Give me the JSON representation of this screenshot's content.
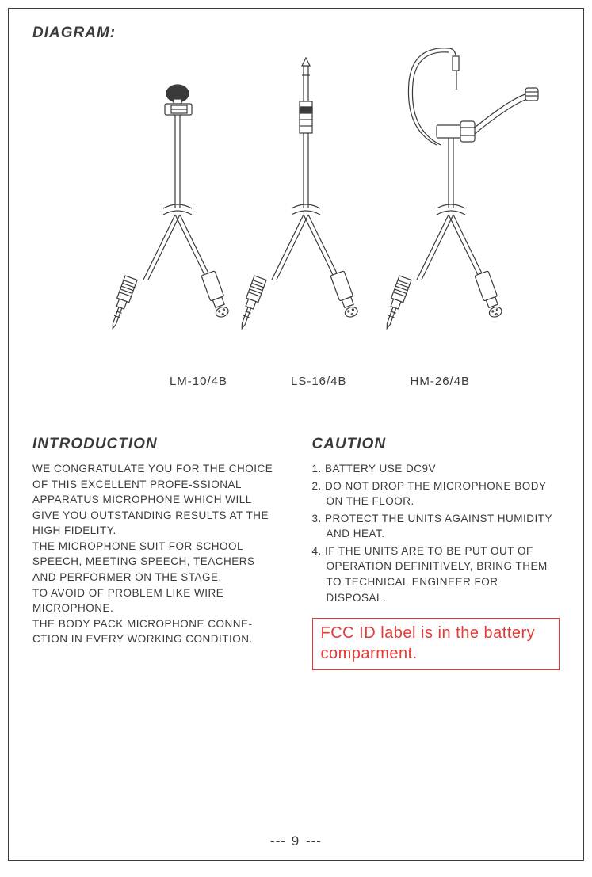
{
  "diagram": {
    "title": "DIAGRAM:",
    "labels": [
      "LM-10/4B",
      "LS-16/4B",
      "HM-26/4B"
    ],
    "stroke": "#3a3a3a",
    "stroke_width": 1.2
  },
  "introduction": {
    "title": "INTRODUCTION",
    "body": "WE CONGRATULATE YOU FOR THE CHOICE OF THIS EXCELLENT PROFE-SSIONAL APPARATUS MICROPHONE WHICH WILL GIVE YOU OUTSTANDING RESULTS AT THE HIGH FIDELITY.\nTHE MICROPHONE SUIT FOR SCHOOL SPEECH, MEETING SPEECH, TEACHERS AND PERFORMER ON THE STAGE.\nTO AVOID OF PROBLEM LIKE WIRE MICROPHONE.\nTHE BODY PACK MICROPHONE CONNE-CTION IN EVERY WORKING CONDITION."
  },
  "caution": {
    "title": "CAUTION",
    "items": [
      "1. BATTERY USE DC9V",
      "2. DO NOT DROP THE MICROPHONE BODY ON THE FLOOR.",
      "3. PROTECT THE UNITS AGAINST HUMIDITY AND HEAT.",
      "4. IF THE UNITS ARE TO BE PUT OUT OF OPERATION DEFINITIVELY, BRING THEM TO TECHNICAL ENGINEER FOR DISPOSAL."
    ]
  },
  "fcc": {
    "text": " FCC ID label is in the battery comparment.",
    "border_color": "#e53935",
    "text_color": "#e53935"
  },
  "page_number": "9",
  "typography": {
    "title_fontsize": 19,
    "body_fontsize": 13.5,
    "fcc_fontsize": 20,
    "label_fontsize": 15,
    "text_color": "#3a3a3a",
    "background": "#ffffff"
  }
}
